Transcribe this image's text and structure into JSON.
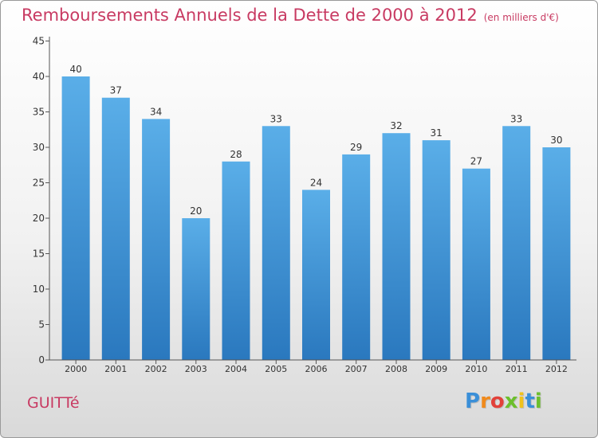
{
  "title": "Remboursements Annuels de la Dette de 2000 à 2012",
  "subtitle": "(en milliers d'€)",
  "commune": "GUITTé",
  "logo": {
    "letters": [
      "P",
      "r",
      "o",
      "x",
      "i",
      "t",
      "i"
    ],
    "colors": [
      "#3a8fd8",
      "#f08a1c",
      "#e2413a",
      "#6cbf2c",
      "#f0c21c",
      "#3a8fd8",
      "#6cbf2c"
    ]
  },
  "colors": {
    "bar_top": "#5aaee8",
    "bar_bottom": "#2a78be",
    "title": "#c83a62",
    "axis": "#555555"
  },
  "chart_data": {
    "type": "bar",
    "categories": [
      "2000",
      "2001",
      "2002",
      "2003",
      "2004",
      "2005",
      "2006",
      "2007",
      "2008",
      "2009",
      "2010",
      "2011",
      "2012"
    ],
    "values": [
      40,
      37,
      34,
      20,
      28,
      33,
      24,
      29,
      32,
      31,
      27,
      33,
      30
    ],
    "ylim": [
      0,
      45
    ],
    "yticks": [
      0,
      5,
      10,
      15,
      20,
      25,
      30,
      35,
      40,
      45
    ],
    "grid": false,
    "legend": "none"
  }
}
